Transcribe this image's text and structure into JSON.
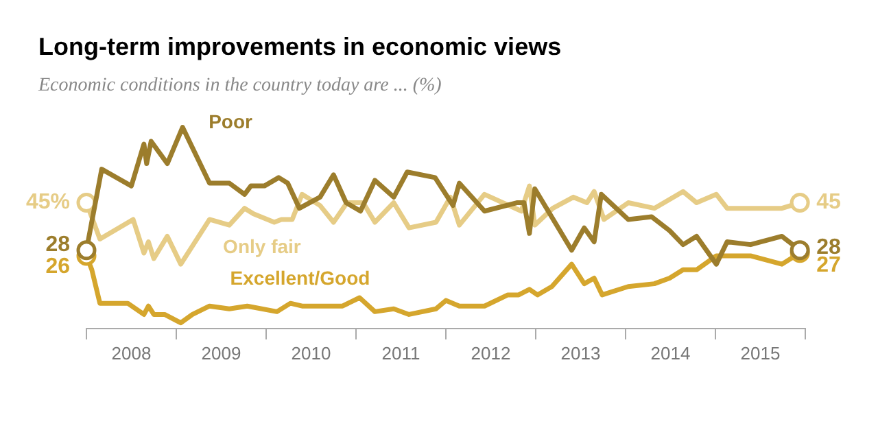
{
  "chart_data": {
    "type": "line",
    "title": "Long-term improvements in economic views",
    "subtitle": "Economic conditions in the country today are ... (%)",
    "xlim": [
      2008,
      2016
    ],
    "xticks": [
      {
        "value": 2008,
        "label": null
      },
      {
        "value": 2008.5,
        "label": "2008"
      },
      {
        "value": 2009,
        "label": null
      },
      {
        "value": 2009.5,
        "label": "2009"
      },
      {
        "value": 2010,
        "label": null
      },
      {
        "value": 2010.5,
        "label": "2010"
      },
      {
        "value": 2011,
        "label": null
      },
      {
        "value": 2011.5,
        "label": "2011"
      },
      {
        "value": 2012,
        "label": null
      },
      {
        "value": 2012.5,
        "label": "2012"
      },
      {
        "value": 2013,
        "label": null
      },
      {
        "value": 2013.5,
        "label": "2013"
      },
      {
        "value": 2014,
        "label": null
      },
      {
        "value": 2014.5,
        "label": "2014"
      },
      {
        "value": 2015,
        "label": null
      },
      {
        "value": 2015.5,
        "label": "2015"
      },
      {
        "value": 2016,
        "label": null
      }
    ],
    "tick_labels": "x",
    "grid": false,
    "legend": false,
    "series": [
      {
        "name": "Poor",
        "color": "#9c7d2c",
        "x": [
          2008,
          2008.17,
          2008.5,
          2008.64,
          2008.67,
          2008.72,
          2008.9,
          2009.07,
          2009.37,
          2009.59,
          2009.76,
          2009.83,
          2009.98,
          2010.14,
          2010.24,
          2010.37,
          2010.6,
          2010.75,
          2010.89,
          2011.05,
          2011.21,
          2011.42,
          2011.57,
          2011.88,
          2012.08,
          2012.15,
          2012.43,
          2012.79,
          2012.87,
          2012.93,
          2012.99,
          2013.4,
          2013.54,
          2013.65,
          2013.73,
          2014.03,
          2014.29,
          2014.49,
          2014.64,
          2014.79,
          2015.01,
          2015.13,
          2015.39,
          2015.74,
          2015.94
        ],
        "values": [
          28,
          57,
          51,
          66,
          59,
          67,
          59,
          72,
          52,
          52,
          48,
          51,
          51,
          54,
          52,
          43,
          47,
          55,
          45,
          42,
          53,
          47,
          56,
          54,
          44,
          52,
          42,
          45,
          45,
          34,
          50,
          28,
          36,
          31,
          48,
          39,
          40,
          35,
          30,
          33,
          23,
          31,
          30,
          33,
          28
        ],
        "value_labels": [
          "28",
          null,
          null,
          null,
          null,
          null,
          null,
          null,
          null,
          null,
          null,
          null,
          null,
          null,
          null,
          null,
          null,
          null,
          null,
          null,
          null,
          null,
          null,
          null,
          null,
          null,
          null,
          null,
          null,
          null,
          null,
          null,
          null,
          null,
          null,
          null,
          null,
          null,
          null,
          null,
          null,
          null,
          null,
          null,
          "28"
        ]
      },
      {
        "name": "Only fair",
        "color": "#e6cc86",
        "x": [
          2008,
          2008.15,
          2008.52,
          2008.64,
          2008.69,
          2008.75,
          2008.9,
          2009.05,
          2009.37,
          2009.59,
          2009.76,
          2009.86,
          2010.09,
          2010.17,
          2010.29,
          2010.4,
          2010.6,
          2010.75,
          2010.9,
          2011.08,
          2011.21,
          2011.42,
          2011.59,
          2011.89,
          2012.05,
          2012.15,
          2012.43,
          2012.84,
          2012.93,
          2012.99,
          2013.19,
          2013.42,
          2013.57,
          2013.65,
          2013.76,
          2014.03,
          2014.32,
          2014.64,
          2014.79,
          2015.01,
          2015.13,
          2015.74,
          2015.94
        ],
        "values": [
          45,
          32,
          39,
          27,
          31,
          25,
          33,
          23,
          39,
          37,
          43,
          41,
          38,
          39,
          39,
          48,
          44,
          38,
          45,
          45,
          38,
          45,
          36,
          38,
          47,
          37,
          48,
          42,
          51,
          37,
          43,
          47,
          45,
          49,
          39,
          45,
          43,
          49,
          45,
          48,
          43,
          43,
          45
        ],
        "value_labels": [
          "45%",
          null,
          null,
          null,
          null,
          null,
          null,
          null,
          null,
          null,
          null,
          null,
          null,
          null,
          null,
          null,
          null,
          null,
          null,
          null,
          null,
          null,
          null,
          null,
          null,
          null,
          null,
          null,
          null,
          null,
          null,
          null,
          null,
          null,
          null,
          null,
          null,
          null,
          null,
          null,
          null,
          null,
          "45"
        ]
      },
      {
        "name": "Excellent/Good",
        "color": "#d5a62d",
        "x": [
          2008,
          2008.06,
          2008.15,
          2008.46,
          2008.64,
          2008.69,
          2008.75,
          2008.87,
          2009.05,
          2009.18,
          2009.37,
          2009.59,
          2009.79,
          2010.12,
          2010.27,
          2010.4,
          2010.85,
          2011.04,
          2011.21,
          2011.42,
          2011.59,
          2011.89,
          2012,
          2012.15,
          2012.43,
          2012.69,
          2012.81,
          2012.93,
          2013.02,
          2013.18,
          2013.4,
          2013.54,
          2013.65,
          2013.74,
          2014.03,
          2014.32,
          2014.49,
          2014.64,
          2014.79,
          2015.01,
          2015.13,
          2015.39,
          2015.74,
          2015.94
        ],
        "values": [
          26,
          21,
          9,
          9,
          5,
          8,
          5,
          5,
          2,
          5,
          8,
          7,
          8,
          6,
          9,
          8,
          8,
          11,
          6,
          7,
          5,
          7,
          10,
          8,
          8,
          12,
          12,
          14,
          12,
          15,
          23,
          16,
          18,
          12,
          15,
          16,
          18,
          21,
          21,
          26,
          26,
          26,
          23,
          27
        ],
        "value_labels": [
          "26",
          null,
          null,
          null,
          null,
          null,
          null,
          null,
          null,
          null,
          null,
          null,
          null,
          null,
          null,
          null,
          null,
          null,
          null,
          null,
          null,
          null,
          null,
          null,
          null,
          null,
          null,
          null,
          null,
          null,
          null,
          null,
          null,
          null,
          null,
          null,
          null,
          null,
          null,
          null,
          null,
          null,
          null,
          "27"
        ]
      }
    ]
  }
}
